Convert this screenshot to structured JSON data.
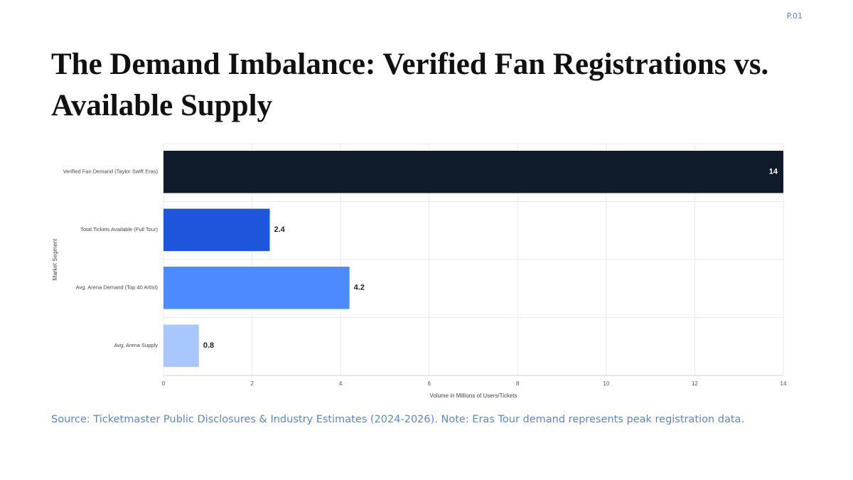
{
  "page_label": "P.01",
  "title": "The Demand Imbalance: Verified Fan Registrations vs. Available Supply",
  "chart_data": {
    "type": "bar",
    "orientation": "horizontal",
    "categories": [
      "Verified Fan Demand (Taylor Swift Eras)",
      "Total Tickets Available (Full Tour)",
      "Avg. Arena Demand (Top 40 Artist)",
      "Avg. Arena Supply"
    ],
    "values": [
      14,
      2.4,
      4.2,
      0.8
    ],
    "colors": [
      "#0f1b2b",
      "#1d56db",
      "#4b8bff",
      "#a8c6ff"
    ],
    "xlim": [
      0,
      14
    ],
    "xticks": [
      0,
      2,
      4,
      6,
      8,
      10,
      12,
      14
    ],
    "x_label": "Volume in Millions of Users/Tickets",
    "y_label": "Market Segment",
    "grid": true
  },
  "source": "Source: Ticketmaster Public Disclosures & Industry Estimates (2024-2026). Note: Eras Tour demand represents peak registration data."
}
